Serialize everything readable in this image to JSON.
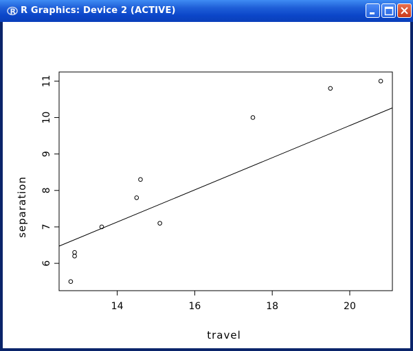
{
  "window": {
    "title": "R Graphics: Device 2 (ACTIVE)",
    "icon": "r-logo-icon",
    "buttons": [
      "minimize-icon",
      "maximize-icon",
      "close-icon"
    ],
    "accent": "#0b46c9",
    "close_color": "#d9522c"
  },
  "chart_data": {
    "type": "scatter",
    "title": "",
    "xlabel": "travel",
    "ylabel": "separation",
    "xlim": [
      12.5,
      21.1
    ],
    "ylim": [
      5.25,
      11.25
    ],
    "xticks": [
      14,
      16,
      18,
      20
    ],
    "yticks": [
      6,
      7,
      8,
      9,
      10,
      11
    ],
    "grid": false,
    "legend": "none",
    "points": [
      {
        "x": 12.8,
        "y": 5.5
      },
      {
        "x": 12.9,
        "y": 6.2
      },
      {
        "x": 12.9,
        "y": 6.3
      },
      {
        "x": 13.6,
        "y": 7.0
      },
      {
        "x": 14.5,
        "y": 7.8
      },
      {
        "x": 14.6,
        "y": 8.3
      },
      {
        "x": 15.1,
        "y": 7.1
      },
      {
        "x": 17.5,
        "y": 10.0
      },
      {
        "x": 19.5,
        "y": 10.8
      },
      {
        "x": 20.8,
        "y": 11.0
      }
    ],
    "fit_line": {
      "intercept": 0.96,
      "slope": 0.441
    }
  }
}
